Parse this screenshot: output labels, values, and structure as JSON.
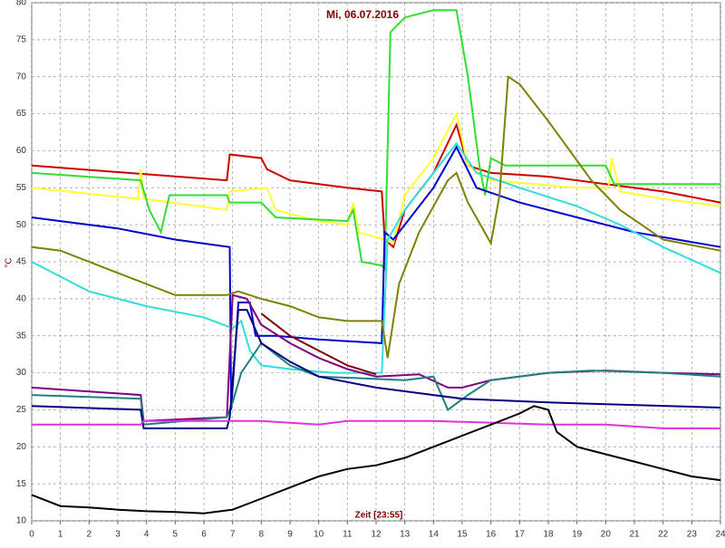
{
  "chart_data": {
    "type": "line",
    "title": "Mi, 06.07.2016",
    "x_label": "Zeit [23:55]",
    "y_label": "°C",
    "xlim": [
      0,
      24
    ],
    "xticks": [
      0,
      1,
      2,
      3,
      4,
      5,
      6,
      7,
      8,
      9,
      10,
      11,
      12,
      13,
      14,
      15,
      16,
      17,
      18,
      19,
      20,
      21,
      22,
      23,
      24
    ],
    "ylim": [
      10,
      80
    ],
    "yticks": [
      10,
      15,
      20,
      25,
      30,
      35,
      40,
      45,
      50,
      55,
      60,
      65,
      70,
      75,
      80
    ],
    "grid": true,
    "series": [
      {
        "color": "#cc0000",
        "x": [
          0,
          6.8,
          6.9,
          8,
          8.2,
          9,
          11,
          12.2,
          12.3,
          12.6,
          13,
          14,
          14.8,
          15.2,
          16,
          18,
          20,
          22,
          24
        ],
        "values": [
          58,
          56,
          59.5,
          59,
          57.5,
          56,
          55,
          54.5,
          48,
          47,
          52,
          57,
          63.5,
          58,
          57,
          56.5,
          55.5,
          54.5,
          53
        ]
      },
      {
        "color": "#ffff33",
        "x": [
          0,
          3.7,
          3.8,
          3.9,
          6.8,
          6.9,
          8.2,
          8.5,
          10,
          11,
          11.2,
          11.4,
          12.3,
          12.6,
          13,
          14,
          14.8,
          15.2,
          16,
          19,
          20.1,
          20.2,
          20.5,
          22,
          24
        ],
        "values": [
          55,
          53.5,
          57.5,
          53.5,
          52,
          54.5,
          55,
          52,
          50.5,
          50,
          53,
          49,
          48,
          47.5,
          54,
          59,
          65,
          58,
          56,
          55,
          55,
          59,
          54.5,
          53.5,
          52.5
        ]
      },
      {
        "color": "#33dd33",
        "x": [
          0,
          3.8,
          4.1,
          4.5,
          4.8,
          6.8,
          6.9,
          8,
          8.5,
          11,
          11.2,
          11.5,
          12.2,
          12.3,
          12.5,
          13,
          14,
          14.8,
          15.2,
          15.6,
          15.8,
          16,
          16.5,
          17,
          20,
          20.3,
          24
        ],
        "values": [
          57,
          56,
          52,
          49,
          54,
          54,
          53,
          53,
          51,
          50.5,
          52,
          45,
          44.5,
          44,
          76,
          78,
          79,
          79,
          70,
          58,
          54,
          59,
          58,
          58,
          58,
          55.5,
          55.5
        ]
      },
      {
        "color": "#0000cc",
        "x": [
          0,
          1,
          3,
          5,
          6.9,
          6.95,
          7.2,
          7.6,
          7.8,
          8.5,
          10,
          12.2,
          12.3,
          12.6,
          13,
          14,
          14.8,
          15.5,
          17,
          19,
          21,
          24
        ],
        "values": [
          51,
          50.5,
          49.5,
          48,
          47,
          25,
          39.5,
          39.5,
          35,
          35,
          34.5,
          34,
          49,
          48,
          50,
          55,
          60.5,
          55,
          53,
          51,
          49,
          47
        ]
      },
      {
        "color": "#33dddd",
        "x": [
          0,
          2,
          4,
          6,
          7,
          7.3,
          7.6,
          8,
          9,
          10.5,
          12.2,
          12.4,
          13,
          14,
          14.8,
          15.5,
          17,
          19,
          20.5,
          22,
          24
        ],
        "values": [
          45,
          41,
          39,
          37.5,
          36,
          37,
          33,
          31,
          30.5,
          30,
          30,
          48,
          52,
          57,
          61,
          57,
          55,
          52.5,
          50,
          47,
          43.5
        ]
      },
      {
        "color": "#808000",
        "x": [
          0,
          1,
          3,
          5,
          6.8,
          7.2,
          8,
          9,
          10,
          11,
          12.2,
          12.4,
          12.8,
          13.5,
          14.5,
          14.8,
          15.2,
          16,
          16.3,
          16.6,
          17,
          18,
          19.5,
          20.5,
          22,
          24
        ],
        "values": [
          47,
          46.5,
          43.5,
          40.5,
          40.5,
          41,
          40,
          39,
          37.5,
          37,
          37,
          32,
          42,
          49,
          56,
          57,
          53,
          47.5,
          54,
          70,
          69,
          64,
          56,
          52,
          48,
          46.5
        ]
      },
      {
        "color": "#800080",
        "x": [
          0,
          3.8,
          3.9,
          6.8,
          7,
          7.5,
          8,
          9,
          10,
          11,
          12,
          13.5,
          14.5,
          15,
          16,
          18,
          20,
          22,
          24
        ],
        "values": [
          28,
          27,
          23.5,
          24,
          40.5,
          40,
          36.5,
          34,
          32,
          30.5,
          29.5,
          29.8,
          28,
          28,
          29,
          30,
          30.3,
          30,
          29.8
        ]
      },
      {
        "color": "#208080",
        "x": [
          0,
          3.8,
          3.9,
          6.8,
          7,
          7.3,
          8,
          9,
          10,
          13,
          14,
          14.5,
          15.2,
          16,
          18,
          19.5,
          22,
          24
        ],
        "values": [
          27,
          26.5,
          23,
          24,
          26,
          30,
          34,
          31,
          29.5,
          29,
          29.5,
          25,
          27,
          29,
          30,
          30.3,
          30,
          29.5
        ]
      },
      {
        "color": "#000080",
        "x": [
          0,
          3.8,
          3.9,
          6.8,
          6.9,
          7.2,
          7.5,
          8,
          9,
          10,
          12,
          14,
          15,
          18,
          24
        ],
        "values": [
          25.5,
          25,
          22.5,
          22.5,
          24,
          38.5,
          38.5,
          34,
          31.5,
          29.5,
          28,
          27,
          26.5,
          26,
          25.3
        ]
      },
      {
        "color": "#800000",
        "x": [
          8,
          9,
          10,
          11,
          12
        ],
        "values": [
          38,
          35,
          33,
          31,
          29.8
        ]
      },
      {
        "color": "#dd33dd",
        "x": [
          0,
          3.8,
          3.9,
          7,
          8,
          10,
          11,
          14,
          18,
          20,
          22,
          24
        ],
        "values": [
          23,
          23,
          23.5,
          23.5,
          23.5,
          23,
          23.5,
          23.5,
          23,
          23,
          22.5,
          22.5
        ]
      },
      {
        "color": "#000000",
        "x": [
          0,
          1,
          2,
          3,
          4,
          5,
          6,
          7,
          8,
          9,
          10,
          11,
          12,
          13,
          14,
          15,
          16,
          17,
          17.5,
          18,
          18.3,
          19,
          20,
          21,
          22,
          23,
          24
        ],
        "values": [
          13.5,
          12,
          11.8,
          11.5,
          11.3,
          11.2,
          11,
          11.5,
          13,
          14.5,
          16,
          17,
          17.5,
          18.5,
          20,
          21.5,
          23,
          24.5,
          25.5,
          25,
          22,
          20,
          19,
          18,
          17,
          16,
          15.5
        ]
      }
    ]
  }
}
